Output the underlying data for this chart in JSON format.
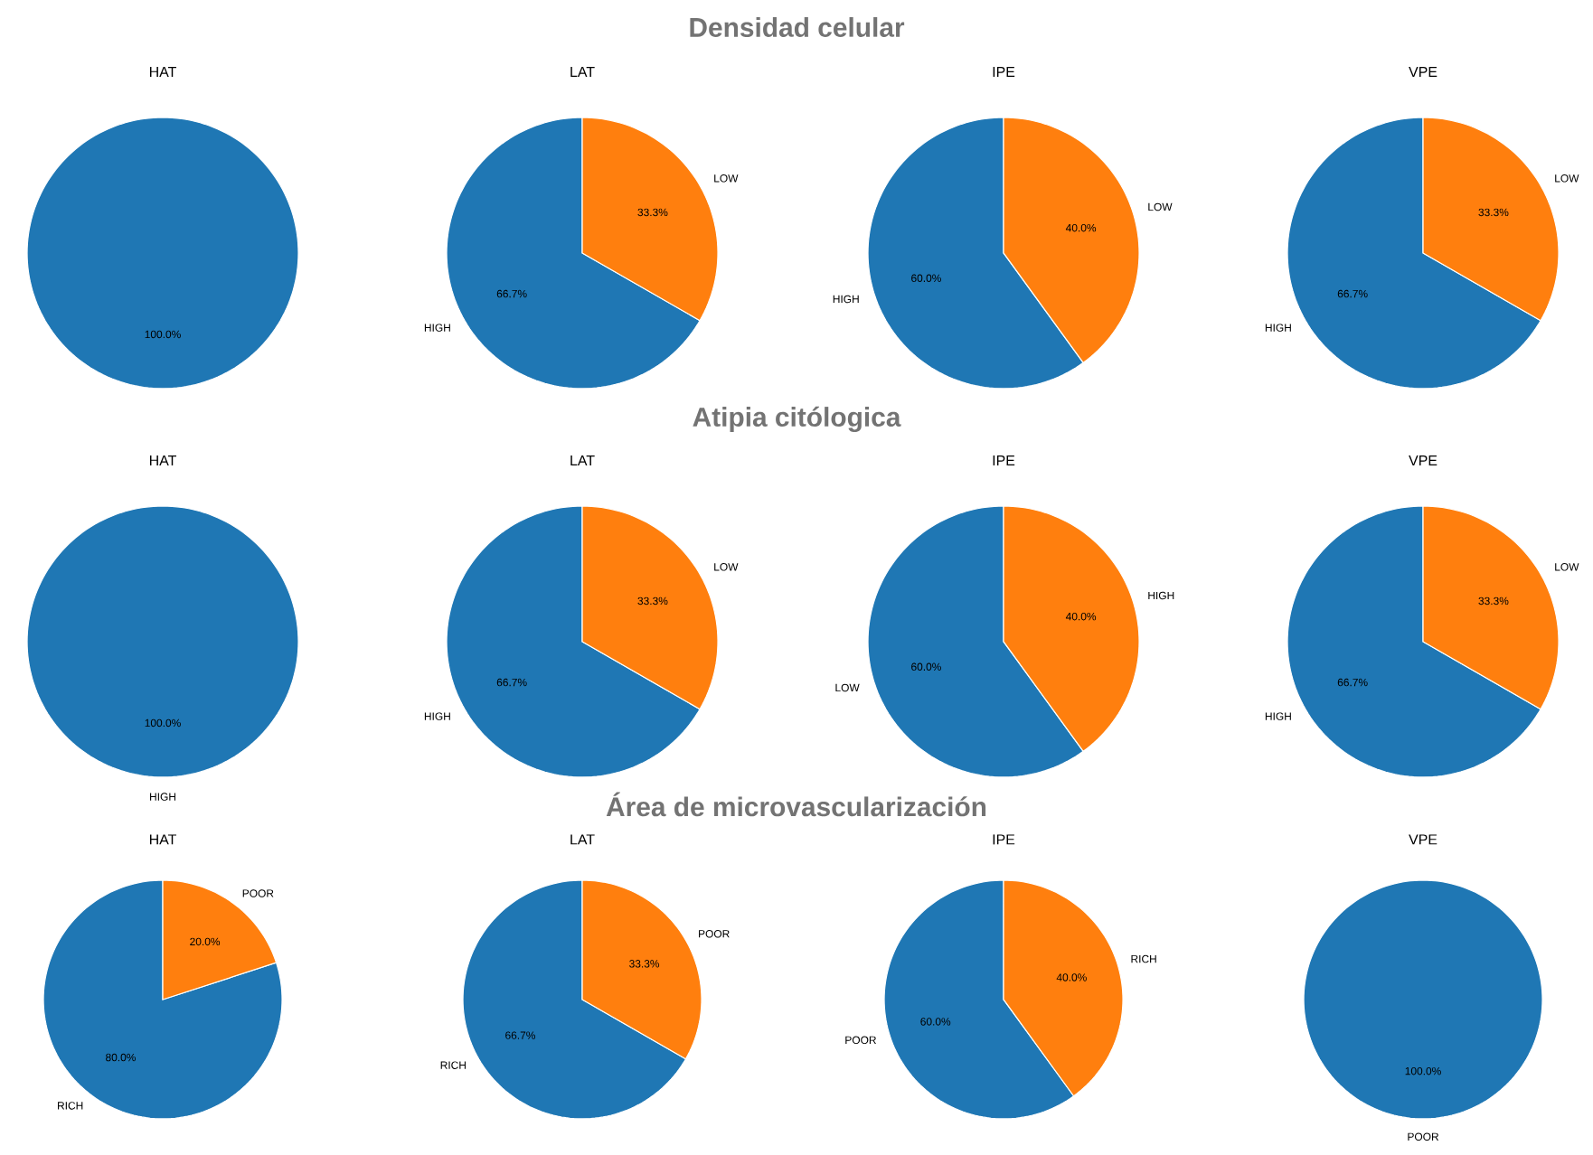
{
  "chart_data": [
    {
      "type": "other",
      "title": "Densidad celular"
    },
    {
      "type": "pie",
      "title": "HAT",
      "categories": [
        null
      ],
      "values": [
        100
      ],
      "colors": [
        "#1f77b4"
      ],
      "value_labels": [
        "100.0%"
      ]
    },
    {
      "type": "pie",
      "title": "LAT",
      "categories": [
        "HIGH",
        "LOW"
      ],
      "values": [
        66.7,
        33.3
      ],
      "colors": [
        "#1f77b4",
        "#ff7f0e"
      ],
      "value_labels": [
        "66.7%",
        "33.3%"
      ]
    },
    {
      "type": "pie",
      "title": "IPE",
      "categories": [
        "HIGH",
        "LOW"
      ],
      "values": [
        60,
        40
      ],
      "colors": [
        "#1f77b4",
        "#ff7f0e"
      ],
      "value_labels": [
        "60.0%",
        "40.0%"
      ]
    },
    {
      "type": "pie",
      "title": "VPE",
      "categories": [
        "HIGH",
        "LOW"
      ],
      "values": [
        66.7,
        33.3
      ],
      "colors": [
        "#1f77b4",
        "#ff7f0e"
      ],
      "value_labels": [
        "66.7%",
        "33.3%"
      ]
    },
    {
      "type": "other",
      "title": "Atipia citólogica"
    },
    {
      "type": "pie",
      "title": "HAT",
      "categories": [
        "HIGH"
      ],
      "values": [
        100
      ],
      "colors": [
        "#1f77b4"
      ],
      "value_labels": [
        "100.0%"
      ]
    },
    {
      "type": "pie",
      "title": "LAT",
      "categories": [
        "HIGH",
        "LOW"
      ],
      "values": [
        66.7,
        33.3
      ],
      "colors": [
        "#1f77b4",
        "#ff7f0e"
      ],
      "value_labels": [
        "66.7%",
        "33.3%"
      ]
    },
    {
      "type": "pie",
      "title": "IPE",
      "categories": [
        "LOW",
        "HIGH"
      ],
      "values": [
        60,
        40
      ],
      "colors": [
        "#1f77b4",
        "#ff7f0e"
      ],
      "value_labels": [
        "60.0%",
        "40.0%"
      ]
    },
    {
      "type": "pie",
      "title": "VPE",
      "categories": [
        "HIGH",
        "LOW"
      ],
      "values": [
        66.7,
        33.3
      ],
      "colors": [
        "#1f77b4",
        "#ff7f0e"
      ],
      "value_labels": [
        "66.7%",
        "33.3%"
      ]
    },
    {
      "type": "other",
      "title": "Área de microvascularización"
    },
    {
      "type": "pie",
      "title": "HAT",
      "categories": [
        "RICH",
        "POOR"
      ],
      "values": [
        80,
        20
      ],
      "colors": [
        "#1f77b4",
        "#ff7f0e"
      ],
      "value_labels": [
        "80.0%",
        "20.0%"
      ]
    },
    {
      "type": "pie",
      "title": "LAT",
      "categories": [
        "RICH",
        "POOR"
      ],
      "values": [
        66.7,
        33.3
      ],
      "colors": [
        "#1f77b4",
        "#ff7f0e"
      ],
      "value_labels": [
        "66.7%",
        "33.3%"
      ]
    },
    {
      "type": "pie",
      "title": "IPE",
      "categories": [
        "POOR",
        "RICH"
      ],
      "values": [
        60,
        40
      ],
      "colors": [
        "#1f77b4",
        "#ff7f0e"
      ],
      "value_labels": [
        "60.0%",
        "40.0%"
      ]
    },
    {
      "type": "pie",
      "title": "VPE",
      "categories": [
        "POOR"
      ],
      "values": [
        100
      ],
      "colors": [
        "#1f77b4"
      ],
      "value_labels": [
        "100.0%"
      ]
    }
  ]
}
